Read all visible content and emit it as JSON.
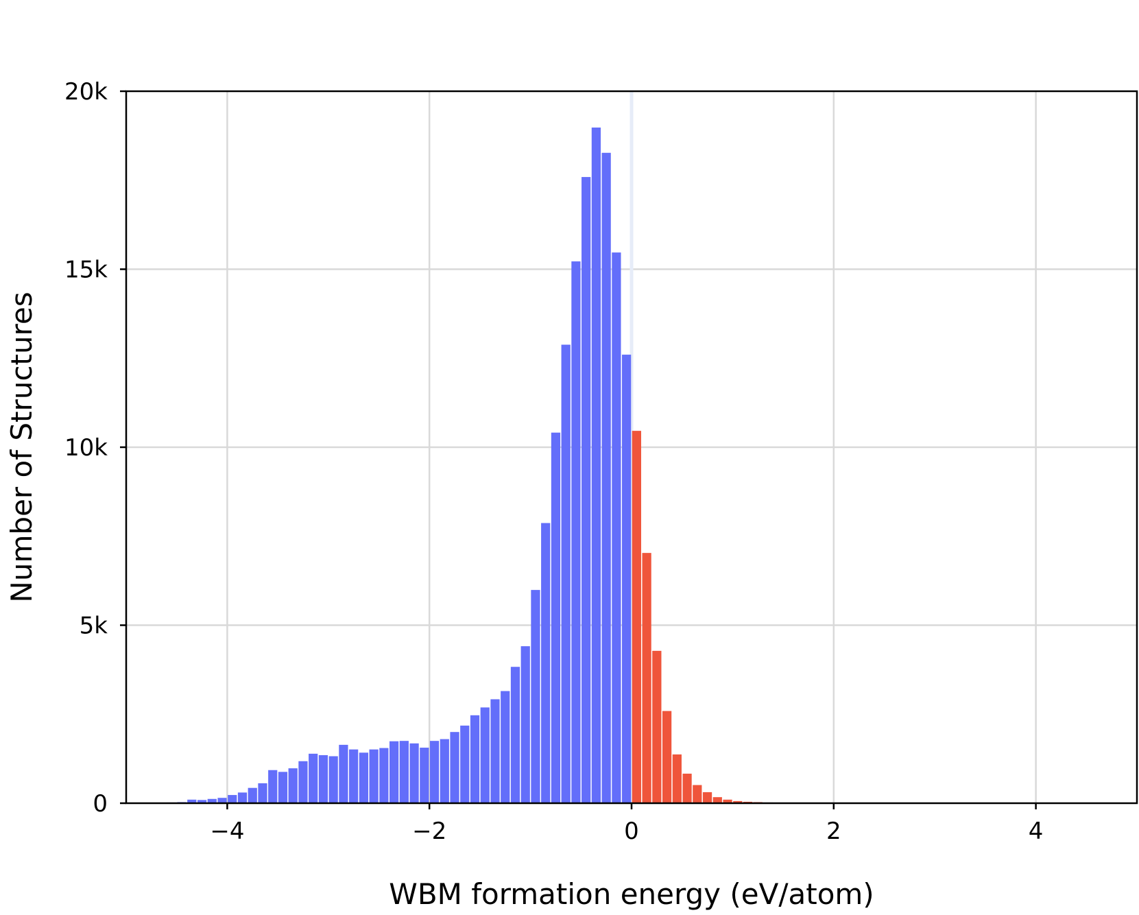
{
  "chart_data": {
    "type": "bar",
    "xlabel": "WBM formation energy (eV/atom)",
    "ylabel": "Number of Structures",
    "xlim": [
      -5,
      5
    ],
    "ylim": [
      0,
      20000
    ],
    "x_ticks": [
      {
        "value": -4,
        "label": "−4"
      },
      {
        "value": -2,
        "label": "−2"
      },
      {
        "value": 0,
        "label": "0"
      },
      {
        "value": 2,
        "label": "2"
      },
      {
        "value": 4,
        "label": "4"
      }
    ],
    "y_ticks": [
      {
        "value": 0,
        "label": "0"
      },
      {
        "value": 5000,
        "label": "5k"
      },
      {
        "value": 10000,
        "label": "10k"
      },
      {
        "value": 15000,
        "label": "15k"
      },
      {
        "value": 20000,
        "label": "20k"
      }
    ],
    "grid": true,
    "bin_width": 0.1,
    "series": [
      {
        "color": "#636efa",
        "x": [
          -4.75,
          -4.65,
          -4.55,
          -4.45,
          -4.35,
          -4.25,
          -4.15,
          -4.05,
          -3.95,
          -3.85,
          -3.75,
          -3.65,
          -3.55,
          -3.45,
          -3.35,
          -3.25,
          -3.15,
          -3.05,
          -2.95,
          -2.85,
          -2.75,
          -2.65,
          -2.55,
          -2.45,
          -2.35,
          -2.25,
          -2.15,
          -2.05,
          -1.95,
          -1.85,
          -1.75,
          -1.65,
          -1.55,
          -1.45,
          -1.35,
          -1.25,
          -1.15,
          -1.05,
          -0.95,
          -0.85,
          -0.75,
          -0.65,
          -0.55,
          -0.45,
          -0.35,
          -0.25,
          -0.15,
          -0.05
        ],
        "values": [
          5,
          10,
          20,
          30,
          100,
          90,
          120,
          150,
          230,
          300,
          430,
          560,
          930,
          880,
          980,
          1180,
          1390,
          1350,
          1320,
          1640,
          1510,
          1420,
          1510,
          1550,
          1740,
          1750,
          1680,
          1560,
          1750,
          1800,
          2000,
          2180,
          2470,
          2690,
          2920,
          3150,
          3830,
          4410,
          5990,
          7870,
          10410,
          12880,
          15220,
          17590,
          18980,
          18270,
          15470,
          12600
        ]
      },
      {
        "color": "#ef553b",
        "x": [
          0.05,
          0.15,
          0.25,
          0.35,
          0.45,
          0.55,
          0.65,
          0.75,
          0.85,
          0.95,
          1.05,
          1.15,
          1.25,
          1.35,
          1.45,
          1.55,
          1.65,
          1.75,
          1.85,
          1.95,
          2.05,
          2.15,
          2.25,
          2.35,
          2.45,
          2.55,
          2.65,
          2.75,
          2.85,
          2.95,
          3.05,
          3.15,
          3.25,
          3.35,
          3.45,
          3.55,
          3.65,
          3.75,
          3.85,
          3.95,
          4.05,
          4.15,
          4.25,
          4.35,
          4.45,
          4.55,
          4.65,
          4.75,
          4.85,
          4.95
        ],
        "values": [
          10460,
          7030,
          4280,
          2590,
          1370,
          830,
          510,
          310,
          170,
          100,
          60,
          40,
          30,
          20,
          15,
          12,
          10,
          8,
          7,
          6,
          6,
          5,
          5,
          5,
          4,
          4,
          4,
          4,
          3,
          3,
          3,
          3,
          3,
          3,
          3,
          2,
          2,
          2,
          2,
          2,
          2,
          2,
          2,
          2,
          2,
          2,
          2,
          2,
          2,
          2
        ]
      }
    ]
  }
}
